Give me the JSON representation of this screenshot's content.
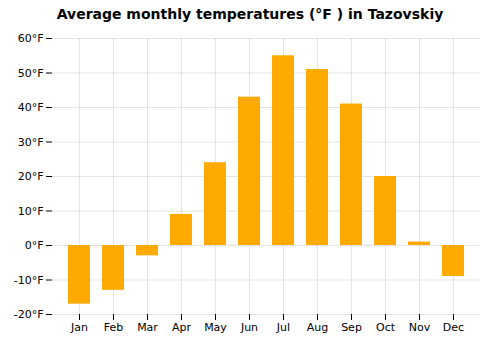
{
  "chart_data": {
    "type": "bar",
    "title": "Average monthly temperatures (°F ) in Tazovskiy",
    "categories": [
      "Jan",
      "Feb",
      "Mar",
      "Apr",
      "May",
      "Jun",
      "Jul",
      "Aug",
      "Sep",
      "Oct",
      "Nov",
      "Dec"
    ],
    "values": [
      -17,
      -13,
      -3,
      9,
      24,
      43,
      55,
      51,
      41,
      20,
      1,
      -9
    ],
    "color": "#FFAA00",
    "ylim": [
      -20,
      60
    ],
    "yticks": [
      {
        "value": -20,
        "label": "-20°F"
      },
      {
        "value": -10,
        "label": "-10°F"
      },
      {
        "value": 0,
        "label": "0°F"
      },
      {
        "value": 10,
        "label": "10°F"
      },
      {
        "value": 20,
        "label": "20°F"
      },
      {
        "value": 30,
        "label": "30°F"
      },
      {
        "value": 40,
        "label": "40°F"
      },
      {
        "value": 50,
        "label": "50°F"
      },
      {
        "value": 60,
        "label": "60°F"
      }
    ],
    "grid": true
  }
}
